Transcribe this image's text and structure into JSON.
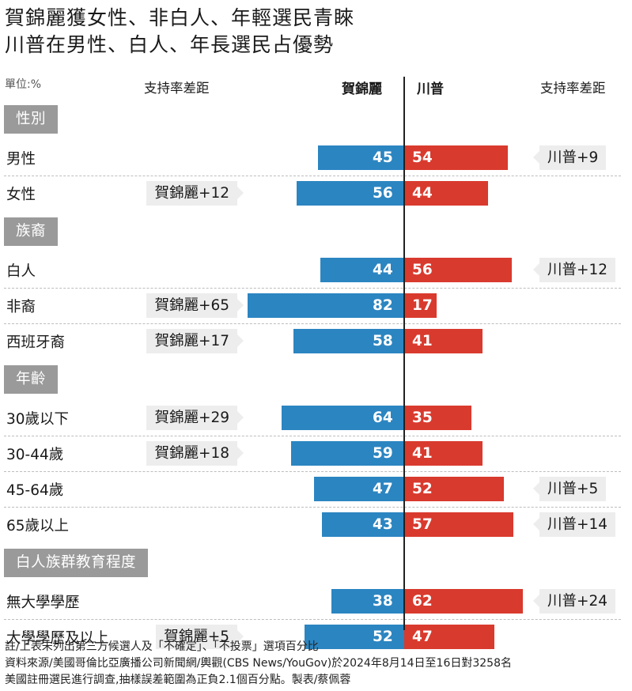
{
  "title": {
    "line1": "賀錦麗獲女性、非白人、年輕選民青睞",
    "line2": "川普在男性、白人、年長選民占優勢"
  },
  "unit_label": "單位:%",
  "header": {
    "margin_left": "支持率差距",
    "harris": "賀錦麗",
    "trump": "川普",
    "margin_right": "支持率差距"
  },
  "colors": {
    "harris": "#2b85c1",
    "trump": "#d93a2e",
    "section": "#9a9a9a",
    "margin_box": "#ededed"
  },
  "chart_data": {
    "type": "bar",
    "orientation": "diverging-horizontal",
    "series_names": [
      "賀錦麗",
      "川普"
    ],
    "groups": [
      {
        "section": "性別",
        "rows": [
          {
            "label": "男性",
            "harris": 45,
            "trump": 54,
            "margin": "川普+9",
            "leader": "trump"
          },
          {
            "label": "女性",
            "harris": 56,
            "trump": 44,
            "margin": "賀錦麗+12",
            "leader": "harris"
          }
        ]
      },
      {
        "section": "族裔",
        "rows": [
          {
            "label": "白人",
            "harris": 44,
            "trump": 56,
            "margin": "川普+12",
            "leader": "trump"
          },
          {
            "label": "非裔",
            "harris": 82,
            "trump": 17,
            "margin": "賀錦麗+65",
            "leader": "harris"
          },
          {
            "label": "西班牙裔",
            "harris": 58,
            "trump": 41,
            "margin": "賀錦麗+17",
            "leader": "harris"
          }
        ]
      },
      {
        "section": "年齡",
        "rows": [
          {
            "label": "30歲以下",
            "harris": 64,
            "trump": 35,
            "margin": "賀錦麗+29",
            "leader": "harris"
          },
          {
            "label": "30-44歲",
            "harris": 59,
            "trump": 41,
            "margin": "賀錦麗+18",
            "leader": "harris"
          },
          {
            "label": "45-64歲",
            "harris": 47,
            "trump": 52,
            "margin": "川普+5",
            "leader": "trump"
          },
          {
            "label": "65歲以上",
            "harris": 43,
            "trump": 57,
            "margin": "川普+14",
            "leader": "trump"
          }
        ]
      },
      {
        "section": "白人族群教育程度",
        "rows": [
          {
            "label": "無大學學歷",
            "harris": 38,
            "trump": 62,
            "margin": "川普+24",
            "leader": "trump"
          },
          {
            "label": "大學學歷及以上",
            "harris": 52,
            "trump": 47,
            "margin": "賀錦麗+5",
            "leader": "harris"
          }
        ]
      }
    ]
  },
  "notes": [
    "註/上表未列出第三方候選人及「不確定」、「不投票」選項百分比",
    "資料來源/美國哥倫比亞廣播公司新聞網/輿觀(CBS News/YouGov)於2024年8月14日至16日對3258名",
    "美國註冊選民進行調查,抽樣誤差範圍為正負2.1個百分點。製表/蔡佩蓉"
  ]
}
